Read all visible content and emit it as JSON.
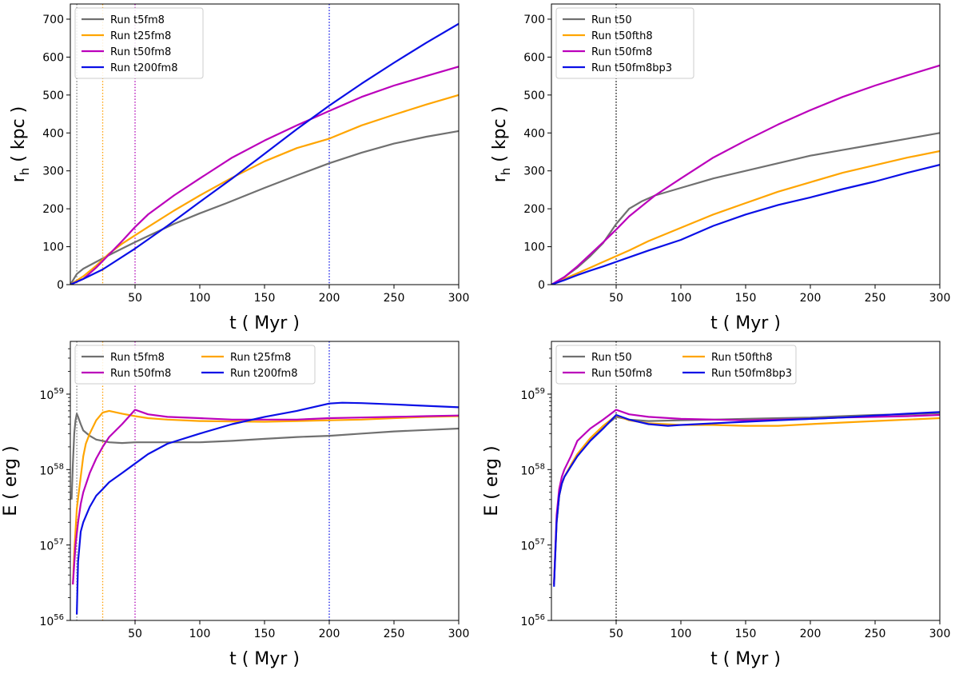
{
  "chart_data": [
    {
      "type": "line",
      "ylabel": "r",
      "ylabel_sub": "h",
      "ylabel_unit": "( kpc )",
      "xlabel": "t ( Myr )",
      "xlim": [
        0,
        300
      ],
      "ylim": [
        0,
        740
      ],
      "yscale": "linear",
      "xticks": [
        50,
        100,
        150,
        200,
        250,
        300
      ],
      "yticks": [
        0,
        100,
        200,
        300,
        400,
        500,
        600,
        700
      ],
      "legend_position": "top-left",
      "legend_columns": 1,
      "vlines": [
        {
          "x": 5,
          "color": "#7f7f7f"
        },
        {
          "x": 25,
          "color": "#ff9f00"
        },
        {
          "x": 50,
          "color": "#b000b5"
        },
        {
          "x": 200,
          "color": "#0b12e6"
        }
      ],
      "series": [
        {
          "name": "Run t5fm8",
          "color": "#707070",
          "x": [
            0,
            5,
            10,
            20,
            30,
            40,
            50,
            60,
            80,
            100,
            120,
            150,
            175,
            200,
            225,
            250,
            275,
            300
          ],
          "y": [
            0,
            28,
            42,
            60,
            78,
            95,
            112,
            128,
            160,
            188,
            214,
            255,
            288,
            320,
            348,
            372,
            390,
            405
          ]
        },
        {
          "name": "Run t25fm8",
          "color": "#ffa500",
          "x": [
            0,
            10,
            20,
            30,
            40,
            50,
            60,
            80,
            100,
            125,
            150,
            175,
            200,
            225,
            250,
            275,
            300
          ],
          "y": [
            0,
            22,
            50,
            82,
            108,
            130,
            152,
            195,
            235,
            282,
            325,
            360,
            385,
            420,
            448,
            475,
            500
          ]
        },
        {
          "name": "Run t50fm8",
          "color": "#bb00bb",
          "x": [
            0,
            10,
            20,
            30,
            40,
            50,
            60,
            80,
            100,
            125,
            150,
            175,
            200,
            225,
            250,
            275,
            300
          ],
          "y": [
            0,
            15,
            45,
            80,
            115,
            152,
            185,
            235,
            280,
            335,
            380,
            420,
            458,
            495,
            525,
            550,
            575
          ]
        },
        {
          "name": "Run t200fm8",
          "color": "#0a0fe6",
          "x": [
            0,
            10,
            25,
            50,
            75,
            100,
            125,
            150,
            175,
            200,
            225,
            250,
            275,
            300
          ],
          "y": [
            0,
            15,
            40,
            95,
            155,
            218,
            280,
            345,
            410,
            472,
            530,
            585,
            638,
            688
          ]
        }
      ]
    },
    {
      "type": "line",
      "ylabel": "r",
      "ylabel_sub": "h",
      "ylabel_unit": "( kpc )",
      "xlabel": "t ( Myr )",
      "xlim": [
        0,
        300
      ],
      "ylim": [
        0,
        740
      ],
      "yscale": "linear",
      "xticks": [
        50,
        100,
        150,
        200,
        250,
        300
      ],
      "yticks": [
        0,
        100,
        200,
        300,
        400,
        500,
        600,
        700
      ],
      "legend_position": "top-left",
      "legend_columns": 1,
      "vlines": [
        {
          "x": 50,
          "color": "#000000"
        }
      ],
      "series": [
        {
          "name": "Run t50",
          "color": "#707070",
          "x": [
            0,
            10,
            20,
            30,
            40,
            50,
            60,
            70,
            80,
            100,
            125,
            150,
            175,
            200,
            225,
            250,
            275,
            300
          ],
          "y": [
            0,
            20,
            45,
            75,
            110,
            160,
            200,
            220,
            235,
            255,
            280,
            300,
            320,
            340,
            355,
            370,
            385,
            400
          ]
        },
        {
          "name": "Run t50fth8",
          "color": "#ffa500",
          "x": [
            0,
            10,
            20,
            30,
            40,
            50,
            60,
            75,
            100,
            125,
            150,
            175,
            200,
            225,
            250,
            275,
            300
          ],
          "y": [
            0,
            15,
            30,
            45,
            60,
            75,
            90,
            115,
            150,
            185,
            215,
            245,
            270,
            295,
            315,
            335,
            352
          ]
        },
        {
          "name": "Run t50fm8",
          "color": "#bb00bb",
          "x": [
            0,
            10,
            20,
            30,
            40,
            50,
            60,
            80,
            100,
            125,
            150,
            175,
            200,
            225,
            250,
            275,
            300
          ],
          "y": [
            0,
            20,
            48,
            80,
            112,
            145,
            180,
            235,
            280,
            335,
            380,
            422,
            460,
            495,
            525,
            552,
            578
          ]
        },
        {
          "name": "Run t50fm8bp3",
          "color": "#0a0fe6",
          "x": [
            0,
            10,
            20,
            30,
            40,
            50,
            60,
            75,
            100,
            125,
            150,
            175,
            200,
            225,
            250,
            275,
            300
          ],
          "y": [
            0,
            12,
            25,
            37,
            48,
            60,
            72,
            90,
            118,
            155,
            185,
            210,
            230,
            252,
            272,
            295,
            316
          ]
        }
      ]
    },
    {
      "type": "line",
      "ylabel": "E ( erg )",
      "xlabel": "t ( Myr )",
      "xlim": [
        0,
        300
      ],
      "ylim": [
        1e+56,
        5e+59
      ],
      "yscale": "log",
      "xticks": [
        50,
        100,
        150,
        200,
        250,
        300
      ],
      "yticks": [
        1e+56,
        1e+57,
        1e+58,
        1e+59
      ],
      "ytick_labels": [
        {
          "base": "10",
          "exp": "56"
        },
        {
          "base": "10",
          "exp": "57"
        },
        {
          "base": "10",
          "exp": "58"
        },
        {
          "base": "10",
          "exp": "59"
        }
      ],
      "legend_position": "top",
      "legend_columns": 2,
      "vlines": [
        {
          "x": 5,
          "color": "#7f7f7f"
        },
        {
          "x": 25,
          "color": "#ff9f00"
        },
        {
          "x": 50,
          "color": "#b000b5"
        },
        {
          "x": 200,
          "color": "#0b12e6"
        }
      ],
      "series": [
        {
          "name": "Run t5fm8",
          "color": "#707070",
          "x": [
            1,
            2,
            3,
            4,
            5,
            6,
            8,
            10,
            15,
            20,
            30,
            40,
            50,
            60,
            80,
            100,
            125,
            150,
            175,
            200,
            225,
            250,
            275,
            300
          ],
          "y": [
            4e+57,
            1.2e+58,
            3e+58,
            4.5e+58,
            5.5e+58,
            5e+58,
            4e+58,
            3.3e+58,
            2.8e+58,
            2.5e+58,
            2.3e+58,
            2.25e+58,
            2.3e+58,
            2.3e+58,
            2.3e+58,
            2.3e+58,
            2.4e+58,
            2.55e+58,
            2.7e+58,
            2.8e+58,
            3e+58,
            3.2e+58,
            3.35e+58,
            3.5e+58
          ]
        },
        {
          "name": "Run t25fm8",
          "color": "#ffa500",
          "x": [
            2,
            3,
            5,
            8,
            10,
            12,
            15,
            20,
            25,
            30,
            40,
            50,
            60,
            75,
            100,
            125,
            150,
            175,
            200,
            225,
            250,
            275,
            300
          ],
          "y": [
            3e+56,
            8e+56,
            3e+57,
            8e+57,
            1.5e+58,
            2.2e+58,
            3e+58,
            4.5e+58,
            5.7e+58,
            6e+58,
            5.5e+58,
            5.1e+58,
            4.8e+58,
            4.6e+58,
            4.4e+58,
            4.35e+58,
            4.3e+58,
            4.4e+58,
            4.5e+58,
            4.6e+58,
            4.8e+58,
            5e+58,
            5.1e+58
          ]
        },
        {
          "name": "Run t50fm8",
          "color": "#bb00bb",
          "x": [
            2,
            4,
            6,
            8,
            10,
            15,
            20,
            25,
            30,
            40,
            50,
            55,
            60,
            75,
            100,
            125,
            150,
            175,
            200,
            225,
            250,
            275,
            300
          ],
          "y": [
            3e+56,
            1e+57,
            2e+57,
            3.5e+57,
            5e+57,
            9e+57,
            1.4e+58,
            2e+58,
            2.7e+58,
            4e+58,
            6.2e+58,
            5.8e+58,
            5.4e+58,
            5e+58,
            4.8e+58,
            4.6e+58,
            4.6e+58,
            4.6e+58,
            4.8e+58,
            4.9e+58,
            5e+58,
            5.1e+58,
            5.2e+58
          ]
        },
        {
          "name": "Run t200fm8",
          "color": "#0a0fe6",
          "x": [
            5,
            6,
            8,
            10,
            15,
            20,
            25,
            30,
            40,
            50,
            60,
            75,
            100,
            125,
            150,
            175,
            200,
            210,
            225,
            250,
            275,
            300
          ],
          "y": [
            1.2e+56,
            6e+56,
            1.5e+57,
            2e+57,
            3.2e+57,
            4.5e+57,
            5.5e+57,
            6.8e+57,
            9e+57,
            1.2e+58,
            1.6e+58,
            2.2e+58,
            3e+58,
            4e+58,
            5e+58,
            6e+58,
            7.5e+58,
            7.7e+58,
            7.6e+58,
            7.3e+58,
            7e+58,
            6.7e+58
          ]
        }
      ]
    },
    {
      "type": "line",
      "ylabel": "E ( erg )",
      "xlabel": "t ( Myr )",
      "xlim": [
        0,
        300
      ],
      "ylim": [
        1e+56,
        5e+59
      ],
      "yscale": "log",
      "xticks": [
        50,
        100,
        150,
        200,
        250,
        300
      ],
      "yticks": [
        1e+56,
        1e+57,
        1e+58,
        1e+59
      ],
      "ytick_labels": [
        {
          "base": "10",
          "exp": "56"
        },
        {
          "base": "10",
          "exp": "57"
        },
        {
          "base": "10",
          "exp": "58"
        },
        {
          "base": "10",
          "exp": "59"
        }
      ],
      "legend_position": "top",
      "legend_columns": 2,
      "vlines": [
        {
          "x": 50,
          "color": "#000000"
        }
      ],
      "series": [
        {
          "name": "Run t50",
          "color": "#707070",
          "x": [
            2,
            4,
            6,
            8,
            10,
            15,
            20,
            30,
            40,
            50,
            60,
            75,
            100,
            125,
            150,
            175,
            200,
            225,
            250,
            275,
            300
          ],
          "y": [
            3e+56,
            2e+57,
            4.5e+57,
            6.5e+57,
            8e+57,
            1.1e+58,
            1.5e+58,
            2.5e+58,
            3.6e+58,
            5e+58,
            4.6e+58,
            4.4e+58,
            4.5e+58,
            4.6e+58,
            4.7e+58,
            4.8e+58,
            4.9e+58,
            5.1e+58,
            5.3e+58,
            5.4e+58,
            5.6e+58
          ]
        },
        {
          "name": "Run t50fth8",
          "color": "#ffa500",
          "x": [
            2,
            4,
            6,
            8,
            10,
            15,
            20,
            30,
            40,
            50,
            60,
            75,
            100,
            125,
            150,
            175,
            200,
            225,
            250,
            275,
            300
          ],
          "y": [
            3e+56,
            2e+57,
            4.5e+57,
            6.5e+57,
            8e+57,
            1.15e+58,
            1.6e+58,
            2.6e+58,
            3.8e+58,
            5.2e+58,
            4.5e+58,
            4.1e+58,
            3.9e+58,
            3.9e+58,
            3.8e+58,
            3.8e+58,
            4e+58,
            4.2e+58,
            4.4e+58,
            4.6e+58,
            4.8e+58
          ]
        },
        {
          "name": "Run t50fm8",
          "color": "#bb00bb",
          "x": [
            2,
            4,
            6,
            8,
            10,
            15,
            20,
            30,
            40,
            50,
            60,
            75,
            100,
            125,
            150,
            175,
            200,
            225,
            250,
            275,
            300
          ],
          "y": [
            3e+56,
            2.5e+57,
            5.5e+57,
            8e+57,
            1e+58,
            1.5e+58,
            2.4e+58,
            3.5e+58,
            4.6e+58,
            6.2e+58,
            5.4e+58,
            5e+58,
            4.7e+58,
            4.6e+58,
            4.5e+58,
            4.6e+58,
            4.7e+58,
            4.9e+58,
            5e+58,
            5.1e+58,
            5.3e+58
          ]
        },
        {
          "name": "Run t50fm8bp3",
          "color": "#0a0fe6",
          "x": [
            2,
            4,
            6,
            8,
            10,
            15,
            20,
            30,
            40,
            50,
            60,
            75,
            90,
            100,
            125,
            150,
            175,
            200,
            225,
            250,
            275,
            300
          ],
          "y": [
            2.8e+56,
            2e+57,
            4.5e+57,
            6.5e+57,
            8e+57,
            1.1e+58,
            1.5e+58,
            2.4e+58,
            3.5e+58,
            5.3e+58,
            4.6e+58,
            4e+58,
            3.8e+58,
            3.9e+58,
            4.1e+58,
            4.3e+58,
            4.5e+58,
            4.7e+58,
            4.9e+58,
            5.2e+58,
            5.5e+58,
            5.8e+58
          ]
        }
      ]
    }
  ]
}
